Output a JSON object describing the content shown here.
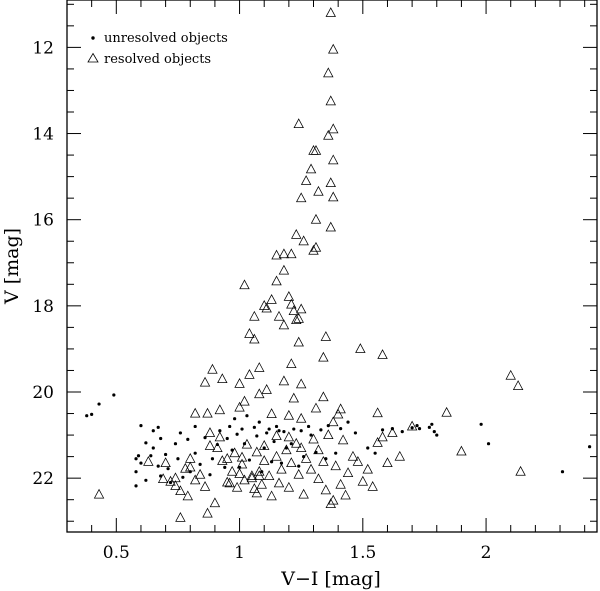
{
  "chart_data": {
    "type": "scatter",
    "xlabel": "V−I [mag]",
    "ylabel": "V [mag]",
    "xlim": [
      0.3,
      2.45
    ],
    "ylim": [
      23.25,
      10.9
    ],
    "y_inverted": true,
    "xticks_major": [
      0.5,
      1,
      1.5,
      2
    ],
    "xtick_labels": [
      "0.5",
      "1",
      "1.5",
      "2"
    ],
    "yticks_major": [
      12,
      14,
      16,
      18,
      20,
      22
    ],
    "ytick_labels": [
      "12",
      "14",
      "16",
      "18",
      "20",
      "22"
    ],
    "legend_position": "top-left",
    "series": [
      {
        "name": "unresolved objects",
        "marker": "dot",
        "points": [
          [
            0.38,
            20.55
          ],
          [
            0.4,
            20.52
          ],
          [
            0.43,
            20.28
          ],
          [
            0.49,
            20.07
          ],
          [
            0.58,
            21.55
          ],
          [
            0.58,
            21.85
          ],
          [
            0.58,
            22.18
          ],
          [
            0.59,
            21.48
          ],
          [
            0.6,
            20.78
          ],
          [
            0.6,
            21.65
          ],
          [
            0.62,
            21.18
          ],
          [
            0.62,
            22.05
          ],
          [
            0.64,
            21.48
          ],
          [
            0.65,
            20.9
          ],
          [
            0.65,
            21.3
          ],
          [
            0.67,
            20.82
          ],
          [
            0.67,
            21.72
          ],
          [
            0.68,
            21.08
          ],
          [
            0.68,
            21.95
          ],
          [
            0.7,
            21.45
          ],
          [
            0.71,
            21.78
          ],
          [
            0.72,
            22.1
          ],
          [
            0.74,
            21.2
          ],
          [
            0.75,
            21.55
          ],
          [
            0.76,
            20.95
          ],
          [
            0.77,
            21.98
          ],
          [
            0.79,
            21.1
          ],
          [
            0.8,
            21.85
          ],
          [
            0.82,
            21.42
          ],
          [
            0.82,
            20.8
          ],
          [
            0.84,
            21.68
          ],
          [
            0.86,
            21.06
          ],
          [
            0.88,
            21.92
          ],
          [
            0.89,
            21.55
          ],
          [
            0.91,
            21.22
          ],
          [
            0.92,
            20.9
          ],
          [
            0.94,
            21.75
          ],
          [
            0.95,
            21.08
          ],
          [
            0.96,
            20.8
          ],
          [
            0.97,
            21.35
          ],
          [
            0.98,
            20.62
          ],
          [
            0.99,
            20.98
          ],
          [
            1.0,
            21.75
          ],
          [
            1.01,
            20.86
          ],
          [
            1.02,
            21.2
          ],
          [
            1.03,
            20.55
          ],
          [
            1.04,
            21.58
          ],
          [
            1.06,
            20.82
          ],
          [
            1.07,
            21.02
          ],
          [
            1.08,
            20.7
          ],
          [
            1.09,
            21.85
          ],
          [
            1.1,
            21.3
          ],
          [
            1.11,
            20.95
          ],
          [
            1.12,
            20.86
          ],
          [
            1.13,
            21.62
          ],
          [
            1.14,
            21.15
          ],
          [
            1.15,
            20.8
          ],
          [
            1.16,
            20.9
          ],
          [
            1.17,
            21.65
          ],
          [
            1.18,
            20.92
          ],
          [
            1.19,
            21.3
          ],
          [
            1.21,
            21.2
          ],
          [
            1.22,
            20.86
          ],
          [
            1.24,
            21.72
          ],
          [
            1.25,
            20.9
          ],
          [
            1.26,
            21.5
          ],
          [
            1.28,
            20.8
          ],
          [
            1.29,
            21.0
          ],
          [
            1.31,
            21.4
          ],
          [
            1.33,
            20.88
          ],
          [
            1.35,
            21.55
          ],
          [
            1.36,
            20.78
          ],
          [
            1.39,
            21.42
          ],
          [
            1.41,
            20.85
          ],
          [
            1.44,
            20.7
          ],
          [
            1.47,
            20.95
          ],
          [
            1.52,
            21.3
          ],
          [
            1.55,
            21.42
          ],
          [
            1.58,
            20.88
          ],
          [
            1.62,
            20.85
          ],
          [
            1.66,
            20.92
          ],
          [
            1.7,
            20.83
          ],
          [
            1.72,
            20.78
          ],
          [
            1.73,
            20.85
          ],
          [
            1.77,
            20.82
          ],
          [
            1.78,
            20.75
          ],
          [
            1.79,
            20.92
          ],
          [
            1.8,
            21.0
          ],
          [
            1.98,
            20.75
          ],
          [
            2.01,
            21.2
          ],
          [
            2.31,
            21.85
          ],
          [
            2.42,
            21.27
          ]
        ]
      },
      {
        "name": "resolved objects",
        "marker": "open-triangle",
        "points": [
          [
            1.37,
            11.2
          ],
          [
            1.38,
            12.05
          ],
          [
            1.36,
            12.6
          ],
          [
            1.37,
            13.25
          ],
          [
            1.38,
            13.9
          ],
          [
            1.36,
            14.05
          ],
          [
            1.24,
            13.78
          ],
          [
            1.3,
            14.4
          ],
          [
            1.31,
            14.4
          ],
          [
            1.38,
            14.62
          ],
          [
            1.29,
            14.83
          ],
          [
            1.27,
            15.1
          ],
          [
            1.37,
            15.15
          ],
          [
            1.32,
            15.35
          ],
          [
            1.25,
            15.5
          ],
          [
            1.38,
            15.48
          ],
          [
            1.31,
            16.0
          ],
          [
            1.37,
            16.18
          ],
          [
            1.23,
            16.35
          ],
          [
            1.31,
            16.65
          ],
          [
            1.3,
            16.72
          ],
          [
            1.26,
            16.5
          ],
          [
            1.18,
            16.8
          ],
          [
            1.15,
            16.83
          ],
          [
            1.21,
            16.8
          ],
          [
            1.18,
            17.18
          ],
          [
            1.02,
            17.52
          ],
          [
            1.15,
            17.43
          ],
          [
            1.2,
            17.79
          ],
          [
            1.13,
            17.86
          ],
          [
            1.21,
            17.97
          ],
          [
            1.22,
            18.12
          ],
          [
            1.25,
            18.08
          ],
          [
            1.23,
            18.33
          ],
          [
            1.24,
            18.3
          ],
          [
            1.1,
            18.0
          ],
          [
            1.11,
            18.06
          ],
          [
            1.06,
            18.25
          ],
          [
            1.16,
            18.25
          ],
          [
            1.18,
            18.45
          ],
          [
            1.04,
            18.65
          ],
          [
            1.06,
            18.78
          ],
          [
            1.24,
            18.85
          ],
          [
            1.35,
            18.72
          ],
          [
            1.49,
            19.0
          ],
          [
            1.58,
            19.14
          ],
          [
            1.34,
            19.2
          ],
          [
            1.21,
            19.35
          ],
          [
            1.08,
            19.44
          ],
          [
            0.89,
            19.48
          ],
          [
            0.93,
            19.7
          ],
          [
            0.86,
            19.78
          ],
          [
            1.0,
            19.81
          ],
          [
            1.04,
            19.6
          ],
          [
            1.18,
            19.75
          ],
          [
            1.25,
            19.82
          ],
          [
            1.11,
            19.95
          ],
          [
            1.08,
            20.05
          ],
          [
            1.0,
            20.36
          ],
          [
            1.02,
            20.22
          ],
          [
            0.92,
            20.42
          ],
          [
            0.87,
            20.5
          ],
          [
            0.82,
            20.5
          ],
          [
            1.13,
            20.51
          ],
          [
            1.2,
            20.55
          ],
          [
            1.25,
            20.62
          ],
          [
            1.34,
            20.12
          ],
          [
            1.41,
            20.4
          ],
          [
            1.4,
            20.52
          ],
          [
            1.38,
            20.7
          ],
          [
            1.22,
            20.15
          ],
          [
            1.31,
            20.38
          ],
          [
            1.56,
            20.49
          ],
          [
            1.7,
            20.8
          ],
          [
            1.84,
            20.48
          ],
          [
            2.1,
            19.62
          ],
          [
            2.13,
            19.86
          ],
          [
            1.9,
            21.38
          ],
          [
            2.14,
            21.85
          ],
          [
            0.43,
            22.38
          ],
          [
            0.63,
            21.62
          ],
          [
            0.69,
            22.02
          ],
          [
            0.72,
            22.08
          ],
          [
            0.74,
            22.18
          ],
          [
            0.76,
            22.3
          ],
          [
            0.78,
            21.78
          ],
          [
            0.79,
            22.42
          ],
          [
            0.8,
            21.55
          ],
          [
            0.82,
            22.05
          ],
          [
            0.84,
            21.92
          ],
          [
            0.86,
            22.2
          ],
          [
            0.88,
            20.95
          ],
          [
            0.9,
            22.58
          ],
          [
            0.91,
            21.3
          ],
          [
            0.93,
            21.6
          ],
          [
            0.95,
            22.1
          ],
          [
            0.97,
            21.85
          ],
          [
            0.98,
            21.42
          ],
          [
            0.99,
            22.22
          ],
          [
            1.01,
            21.68
          ],
          [
            1.02,
            22.05
          ],
          [
            1.03,
            21.22
          ],
          [
            1.05,
            21.95
          ],
          [
            1.06,
            22.25
          ],
          [
            1.07,
            21.4
          ],
          [
            1.08,
            21.85
          ],
          [
            1.09,
            22.15
          ],
          [
            1.1,
            21.6
          ],
          [
            1.12,
            21.95
          ],
          [
            1.13,
            22.42
          ],
          [
            1.15,
            21.5
          ],
          [
            1.16,
            22.12
          ],
          [
            1.17,
            21.8
          ],
          [
            1.19,
            21.35
          ],
          [
            1.2,
            22.22
          ],
          [
            1.21,
            21.65
          ],
          [
            1.23,
            21.2
          ],
          [
            1.24,
            21.92
          ],
          [
            1.26,
            22.38
          ],
          [
            1.27,
            21.55
          ],
          [
            1.29,
            21.8
          ],
          [
            1.3,
            21.1
          ],
          [
            1.32,
            22.02
          ],
          [
            1.34,
            21.62
          ],
          [
            1.35,
            22.28
          ],
          [
            1.36,
            21.0
          ],
          [
            1.37,
            22.6
          ],
          [
            1.38,
            22.52
          ],
          [
            1.39,
            21.72
          ],
          [
            1.41,
            22.15
          ],
          [
            1.43,
            22.4
          ],
          [
            1.44,
            21.88
          ],
          [
            1.46,
            21.5
          ],
          [
            1.48,
            21.62
          ],
          [
            1.5,
            22.08
          ],
          [
            1.52,
            21.8
          ],
          [
            1.54,
            22.2
          ],
          [
            1.56,
            21.18
          ],
          [
            1.58,
            21.05
          ],
          [
            1.6,
            21.65
          ],
          [
            1.62,
            20.95
          ],
          [
            1.65,
            21.5
          ],
          [
            0.76,
            22.92
          ],
          [
            0.87,
            22.82
          ],
          [
            0.96,
            22.12
          ],
          [
            1.0,
            21.9
          ],
          [
            1.05,
            22.0
          ],
          [
            1.07,
            22.35
          ],
          [
            0.92,
            21.05
          ],
          [
            0.88,
            21.25
          ],
          [
            0.8,
            21.75
          ],
          [
            0.74,
            22.0
          ],
          [
            0.7,
            21.65
          ],
          [
            1.15,
            21.02
          ],
          [
            1.2,
            21.05
          ],
          [
            1.25,
            21.3
          ],
          [
            1.32,
            21.35
          ],
          [
            1.42,
            21.12
          ],
          [
            0.95,
            21.55
          ],
          [
            1.01,
            21.52
          ],
          [
            1.1,
            21.25
          ],
          [
            1.08,
            21.95
          ]
        ]
      }
    ]
  }
}
